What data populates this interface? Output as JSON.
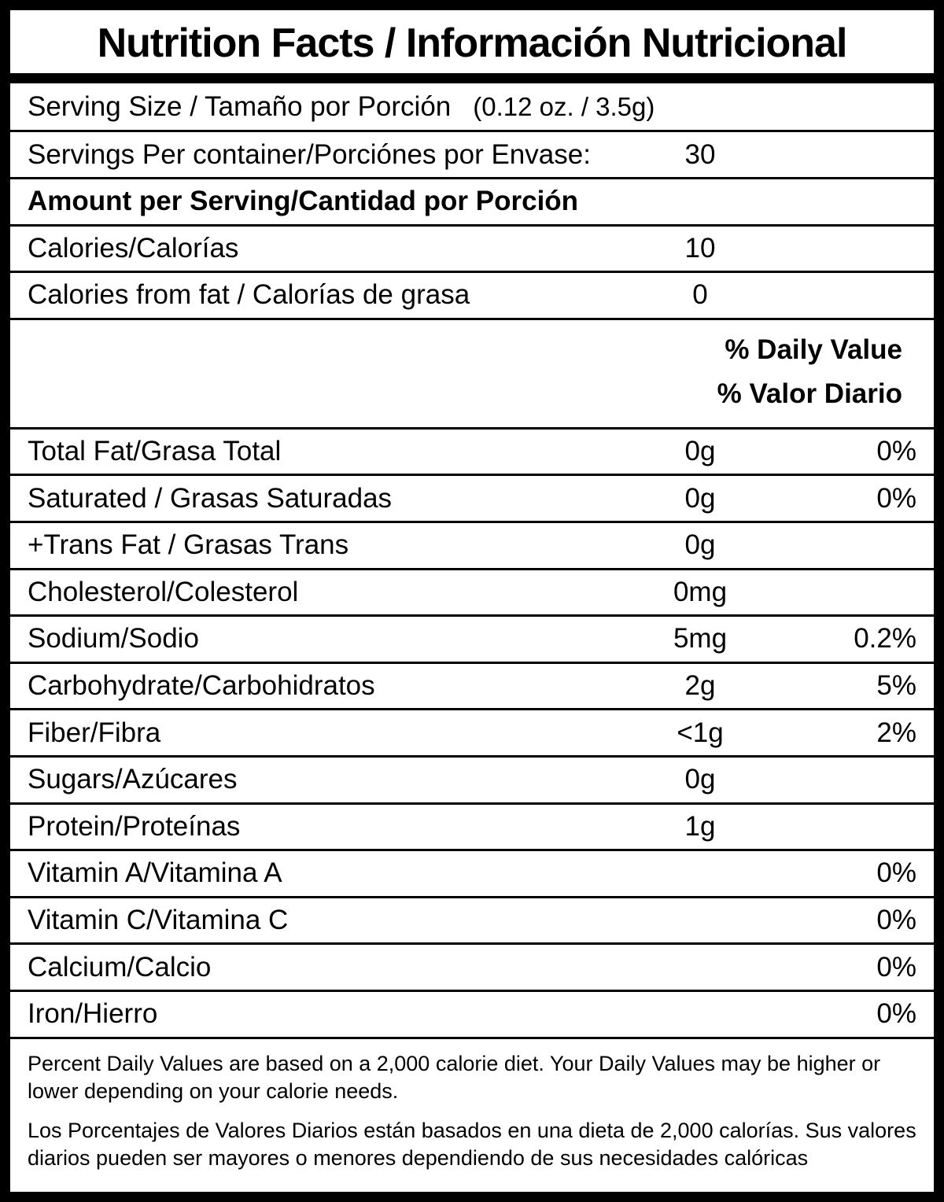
{
  "label": {
    "title": "Nutrition Facts / Información Nutricional",
    "serving_size": {
      "label": "Serving Size / Tamaño por Porción",
      "value": "(0.12 oz. / 3.5g)"
    },
    "servings_per_container": {
      "label": "Servings Per container/Porciónes por Envase:",
      "value": "30"
    },
    "amount_header": "Amount per Serving/Cantidad por Porción",
    "calories": {
      "label": "Calories/Calorías",
      "value": "10"
    },
    "calories_from_fat": {
      "label": "Calories from fat / Calorías de grasa",
      "value": "0"
    },
    "daily_value_header": {
      "line1": "% Daily Value",
      "line2": "% Valor Diario"
    },
    "nutrients": [
      {
        "label": "Total Fat/Grasa Total",
        "amount": "0g",
        "dv": "0%"
      },
      {
        "label": "Saturated / Grasas Saturadas",
        "amount": "0g",
        "dv": "0%"
      },
      {
        "label": "+Trans Fat / Grasas Trans",
        "amount": "0g",
        "dv": ""
      },
      {
        "label": "Cholesterol/Colesterol",
        "amount": "0mg",
        "dv": ""
      },
      {
        "label": "Sodium/Sodio",
        "amount": "5mg",
        "dv": "0.2%"
      },
      {
        "label": "Carbohydrate/Carbohidratos",
        "amount": "2g",
        "dv": "5%"
      },
      {
        "label": "Fiber/Fibra",
        "amount": "<1g",
        "dv": "2%"
      },
      {
        "label": "Sugars/Azúcares",
        "amount": "0g",
        "dv": ""
      },
      {
        "label": "Protein/Proteínas",
        "amount": "1g",
        "dv": ""
      },
      {
        "label": "Vitamin A/Vitamina A",
        "amount": "",
        "dv": "0%"
      },
      {
        "label": "Vitamin C/Vitamina C",
        "amount": "",
        "dv": "0%"
      },
      {
        "label": "Calcium/Calcio",
        "amount": "",
        "dv": "0%"
      },
      {
        "label": "Iron/Hierro",
        "amount": "",
        "dv": "0%"
      }
    ],
    "footnotes": {
      "english": "Percent Daily Values are based on a 2,000 calorie diet. Your Daily Values may be higher or lower depending on your calorie needs.",
      "spanish": "Los Porcentajes de Valores Diarios están basados en una dieta de 2,000 calorías. Sus valores diarios pueden ser mayores o menores dependiendo de sus necesidades calóricas"
    }
  }
}
